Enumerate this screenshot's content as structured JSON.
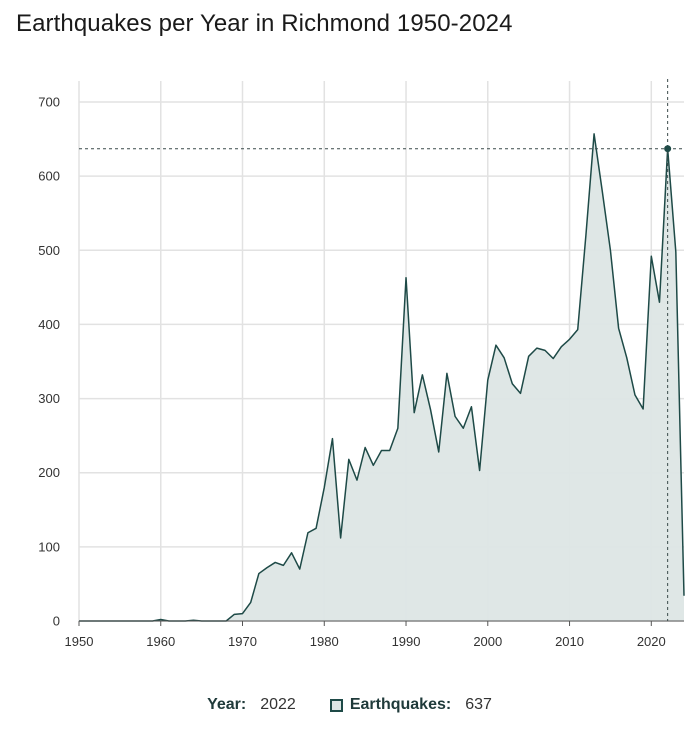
{
  "title": "Earthquakes per Year in Richmond 1950-2024",
  "legend": {
    "year_label": "Year:",
    "year_value": "2022",
    "series_label": "Earthquakes:",
    "series_value": "637"
  },
  "colors": {
    "line": "#1e4a47",
    "fill": "#dde6e5",
    "grid": "#e2e2e2"
  },
  "chart_data": {
    "type": "area",
    "title": "Earthquakes per Year in Richmond 1950-2024",
    "xlabel": "Year",
    "ylabel": "Earthquakes",
    "xlim": [
      1950,
      2024
    ],
    "ylim": [
      0,
      700
    ],
    "x_ticks": [
      1950,
      1960,
      1970,
      1980,
      1990,
      2000,
      2010,
      2020
    ],
    "y_ticks": [
      0,
      100,
      200,
      300,
      400,
      500,
      600,
      700
    ],
    "grid": true,
    "highlight": {
      "x": 2022,
      "y": 637
    },
    "series": [
      {
        "name": "Earthquakes",
        "x": [
          1950,
          1951,
          1952,
          1953,
          1954,
          1955,
          1956,
          1957,
          1958,
          1959,
          1960,
          1961,
          1962,
          1963,
          1964,
          1965,
          1966,
          1967,
          1968,
          1969,
          1970,
          1971,
          1972,
          1973,
          1974,
          1975,
          1976,
          1977,
          1978,
          1979,
          1980,
          1981,
          1982,
          1983,
          1984,
          1985,
          1986,
          1987,
          1988,
          1989,
          1990,
          1991,
          1992,
          1993,
          1994,
          1995,
          1996,
          1997,
          1998,
          1999,
          2000,
          2001,
          2002,
          2003,
          2004,
          2005,
          2006,
          2007,
          2008,
          2009,
          2010,
          2011,
          2012,
          2013,
          2014,
          2015,
          2016,
          2017,
          2018,
          2019,
          2020,
          2021,
          2022,
          2023,
          2024
        ],
        "values": [
          0,
          0,
          0,
          0,
          0,
          0,
          0,
          0,
          0,
          0,
          2,
          0,
          0,
          0,
          1,
          0,
          0,
          0,
          0,
          9,
          10,
          25,
          64,
          72,
          79,
          75,
          92,
          70,
          119,
          125,
          180,
          246,
          112,
          218,
          190,
          234,
          210,
          230,
          230,
          260,
          463,
          281,
          332,
          285,
          228,
          334,
          276,
          260,
          289,
          203,
          325,
          372,
          355,
          320,
          307,
          357,
          368,
          365,
          354,
          370,
          380,
          393,
          520,
          657,
          580,
          500,
          395,
          355,
          305,
          286,
          492,
          430,
          637,
          498,
          34
        ]
      }
    ]
  }
}
